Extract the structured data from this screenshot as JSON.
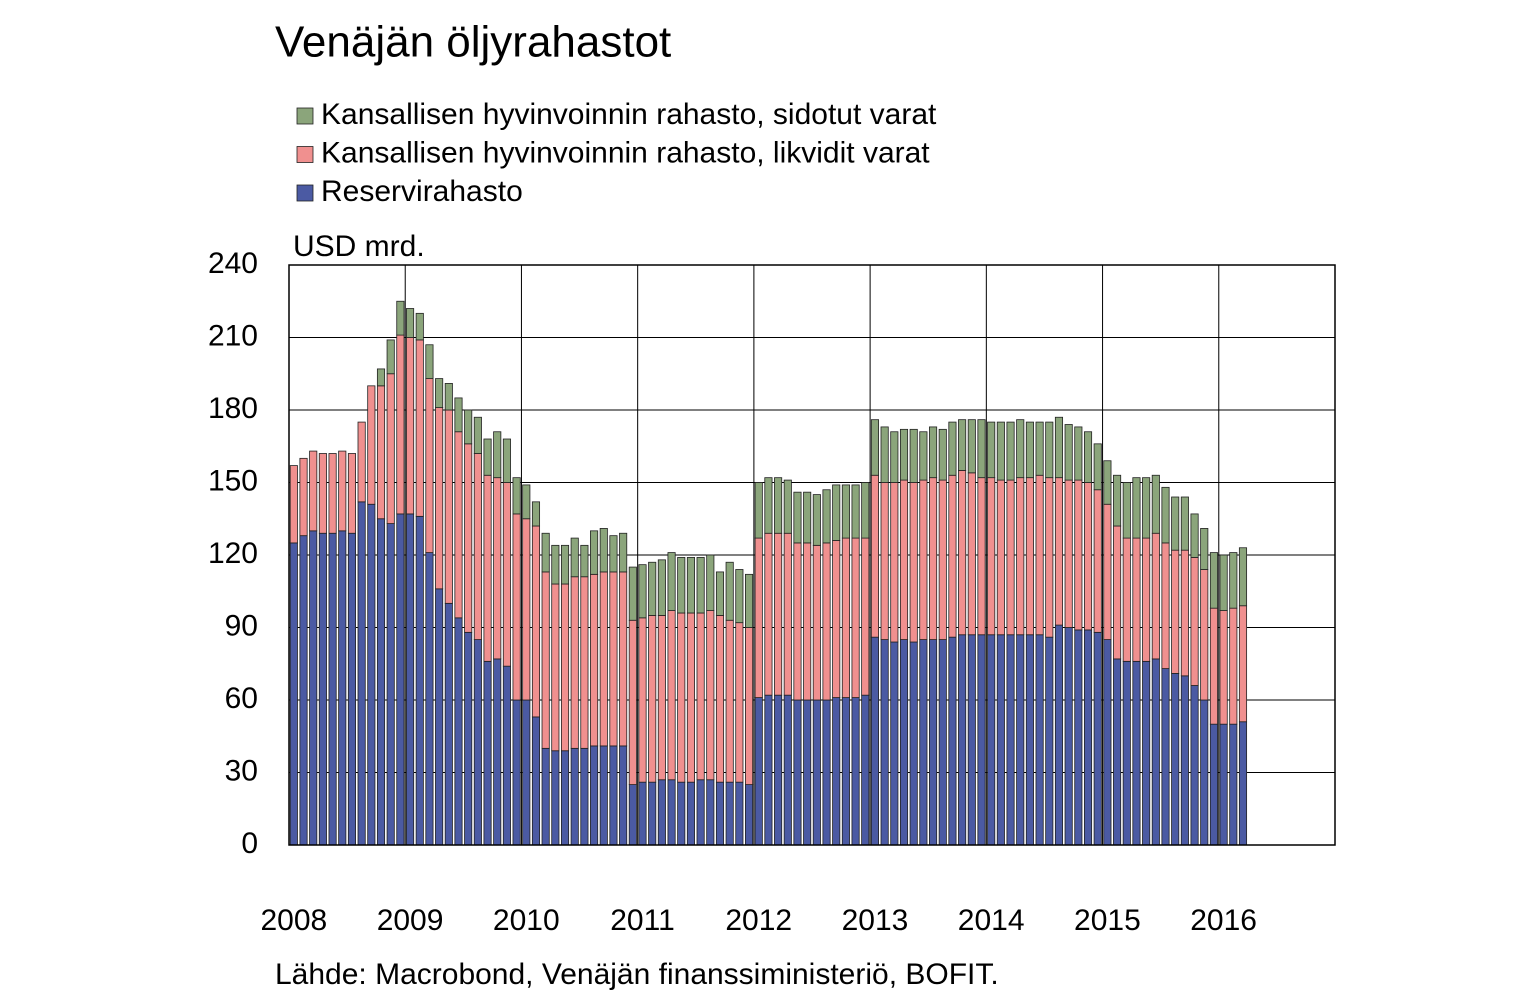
{
  "chart_data": {
    "type": "stacked_bar",
    "title": "Venäjän öljyrahastot",
    "ylabel": "USD mrd.",
    "source": "Lähde: Macrobond, Venäjän finanssiministeriö, BOFIT.",
    "categories": [
      "2008",
      null,
      null,
      null,
      null,
      null,
      null,
      null,
      null,
      null,
      null,
      null,
      "2009",
      null,
      null,
      null,
      null,
      null,
      null,
      null,
      null,
      null,
      null,
      null,
      "2010",
      null,
      null,
      null,
      null,
      null,
      null,
      null,
      null,
      null,
      null,
      null,
      "2011",
      null,
      null,
      null,
      null,
      null,
      null,
      null,
      null,
      null,
      null,
      null,
      "2012",
      null,
      null,
      null,
      null,
      null,
      null,
      null,
      null,
      null,
      null,
      null,
      "2013",
      null,
      null,
      null,
      null,
      null,
      null,
      null,
      null,
      null,
      null,
      null,
      "2014",
      null,
      null,
      null,
      null,
      null,
      null,
      null,
      null,
      null,
      null,
      null,
      "2015",
      null,
      null,
      null,
      null,
      null,
      null,
      null,
      null,
      null,
      null,
      null,
      "2016",
      null,
      null
    ],
    "series": [
      {
        "name": "Reservirahasto",
        "color": "#4b5aa3",
        "values": [
          125,
          128,
          130,
          129,
          129,
          130,
          129,
          142,
          141,
          135,
          133,
          137,
          137,
          136,
          121,
          106,
          100,
          94,
          88,
          85,
          76,
          77,
          74,
          60,
          60,
          53,
          40,
          39,
          39,
          40,
          40,
          41,
          41,
          41,
          41,
          25,
          26,
          26,
          27,
          27,
          26,
          26,
          27,
          27,
          26,
          26,
          26,
          25,
          61,
          62,
          62,
          62,
          60,
          60,
          60,
          60,
          61,
          61,
          61,
          62,
          86,
          85,
          84,
          85,
          84,
          85,
          85,
          85,
          86,
          87,
          87,
          87,
          87,
          87,
          87,
          87,
          87,
          87,
          86,
          91,
          90,
          89,
          89,
          88,
          85,
          77,
          76,
          76,
          76,
          77,
          73,
          71,
          70,
          66,
          60,
          50,
          50,
          50,
          51
        ]
      },
      {
        "name": "Kansallisen hyvinvoinnin rahasto, likvidit varat",
        "color": "#f0908f",
        "values": [
          32,
          32,
          33,
          33,
          33,
          33,
          33,
          33,
          49,
          55,
          62,
          74,
          73,
          73,
          72,
          75,
          80,
          77,
          78,
          77,
          77,
          75,
          76,
          77,
          75,
          79,
          73,
          69,
          69,
          71,
          71,
          71,
          72,
          72,
          72,
          68,
          68,
          69,
          68,
          70,
          70,
          70,
          69,
          70,
          69,
          67,
          66,
          65,
          66,
          67,
          67,
          67,
          65,
          65,
          64,
          65,
          65,
          66,
          66,
          65,
          67,
          65,
          66,
          66,
          66,
          66,
          67,
          66,
          67,
          68,
          67,
          65,
          65,
          64,
          64,
          65,
          65,
          66,
          66,
          61,
          61,
          62,
          61,
          59,
          56,
          55,
          51,
          51,
          51,
          52,
          52,
          51,
          52,
          53,
          54,
          48,
          47,
          48,
          48
        ]
      },
      {
        "name": "Kansallisen hyvinvoinnin rahasto, sidotut varat",
        "color": "#8ba57b",
        "values": [
          0,
          0,
          0,
          0,
          0,
          0,
          0,
          0,
          0,
          7,
          14,
          14,
          12,
          11,
          14,
          12,
          11,
          14,
          14,
          15,
          15,
          19,
          18,
          15,
          14,
          10,
          16,
          16,
          16,
          16,
          13,
          18,
          18,
          15,
          16,
          22,
          22,
          22,
          23,
          24,
          23,
          23,
          23,
          23,
          18,
          24,
          22,
          22,
          23,
          23,
          23,
          22,
          21,
          21,
          21,
          22,
          23,
          22,
          22,
          23,
          23,
          23,
          21,
          21,
          22,
          20,
          21,
          21,
          22,
          21,
          22,
          24,
          23,
          24,
          24,
          24,
          23,
          22,
          23,
          25,
          23,
          22,
          21,
          19,
          18,
          21,
          23,
          25,
          25,
          24,
          23,
          22,
          22,
          18,
          17,
          23,
          23,
          23,
          24
        ]
      }
    ],
    "ylim": [
      0,
      240
    ],
    "yticks": [
      0,
      30,
      60,
      90,
      120,
      150,
      180,
      210,
      240
    ],
    "grid": true
  }
}
